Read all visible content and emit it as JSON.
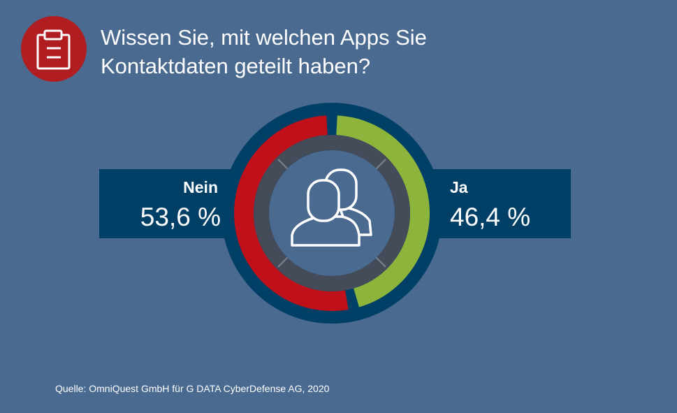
{
  "title_line1": "Wissen Sie, mit welchen Apps Sie",
  "title_line2": "Kontaktdaten geteilt haben?",
  "icon": "clipboard-icon",
  "source": "Quelle: OmniQuest GmbH für G DATA CyberDefense AG, 2020",
  "chart_data": {
    "type": "pie",
    "title": "Wissen Sie, mit welchen Apps Sie Kontaktdaten geteilt haben?",
    "categories": [
      "Ja",
      "Nein"
    ],
    "values": [
      46.4,
      53.6
    ],
    "value_labels": [
      "46,4 %",
      "53,6 %"
    ],
    "colors": [
      "#8db53c",
      "#c0111b"
    ]
  }
}
